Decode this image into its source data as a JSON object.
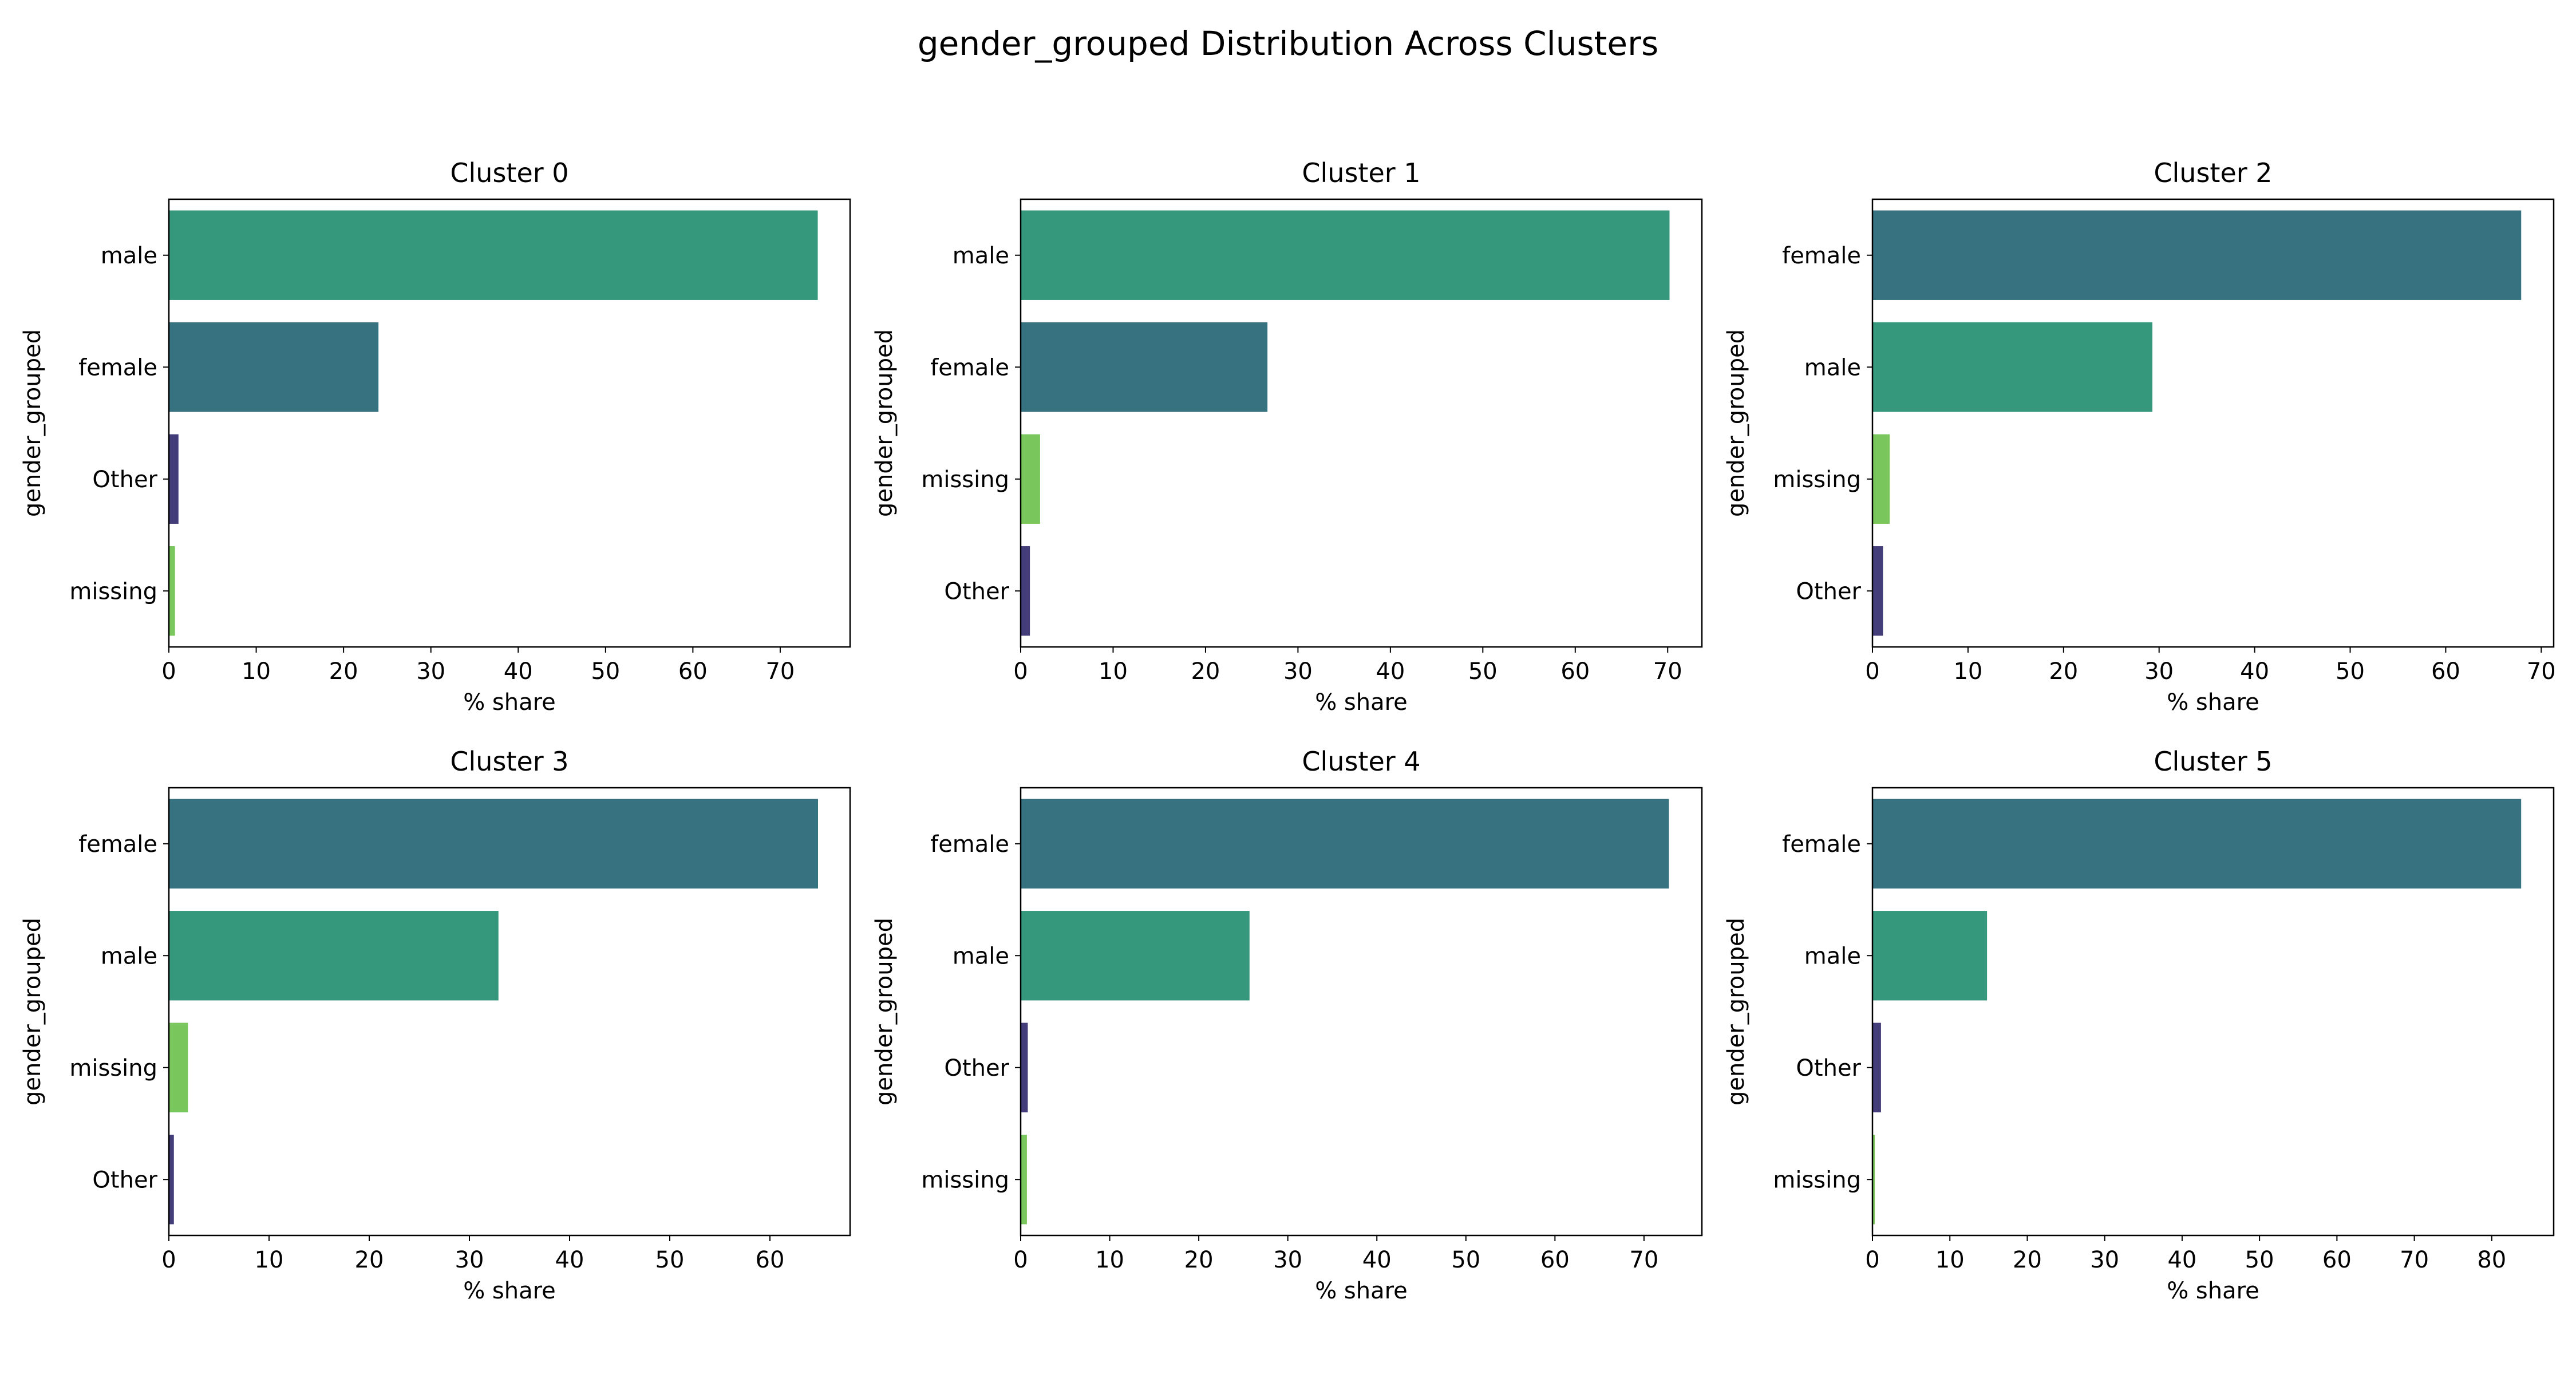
{
  "figure": {
    "title": "gender_grouped Distribution Across Clusters"
  },
  "colors": {
    "male": "#35987C",
    "female": "#377281",
    "Other": "#433D7A",
    "missing": "#79C65C"
  },
  "chart_data": [
    {
      "type": "bar",
      "orientation": "horizontal",
      "title": "Cluster 0",
      "xlabel": "% share",
      "ylabel": "gender_grouped",
      "categories": [
        "male",
        "female",
        "Other",
        "missing"
      ],
      "values": [
        74.3,
        24.0,
        1.1,
        0.7
      ],
      "xlim": [
        0,
        78
      ],
      "xticks": [
        0,
        10,
        20,
        30,
        40,
        50,
        60,
        70
      ],
      "grid": false,
      "legend": "none"
    },
    {
      "type": "bar",
      "orientation": "horizontal",
      "title": "Cluster 1",
      "xlabel": "% share",
      "ylabel": "gender_grouped",
      "categories": [
        "male",
        "female",
        "missing",
        "Other"
      ],
      "values": [
        70.2,
        26.7,
        2.1,
        1.0
      ],
      "xlim": [
        0,
        73.7
      ],
      "xticks": [
        0,
        10,
        20,
        30,
        40,
        50,
        60,
        70
      ],
      "grid": false,
      "legend": "none"
    },
    {
      "type": "bar",
      "orientation": "horizontal",
      "title": "Cluster 2",
      "xlabel": "% share",
      "ylabel": "gender_grouped",
      "categories": [
        "female",
        "male",
        "missing",
        "Other"
      ],
      "values": [
        67.9,
        29.3,
        1.8,
        1.1
      ],
      "xlim": [
        0,
        71.3
      ],
      "xticks": [
        0,
        10,
        20,
        30,
        40,
        50,
        60,
        70
      ],
      "grid": false,
      "legend": "none"
    },
    {
      "type": "bar",
      "orientation": "horizontal",
      "title": "Cluster 3",
      "xlabel": "% share",
      "ylabel": "gender_grouped",
      "categories": [
        "female",
        "male",
        "missing",
        "Other"
      ],
      "values": [
        64.8,
        32.9,
        1.9,
        0.5
      ],
      "xlim": [
        0,
        68
      ],
      "xticks": [
        0,
        10,
        20,
        30,
        40,
        50,
        60
      ],
      "grid": false,
      "legend": "none"
    },
    {
      "type": "bar",
      "orientation": "horizontal",
      "title": "Cluster 4",
      "xlabel": "% share",
      "ylabel": "gender_grouped",
      "categories": [
        "female",
        "male",
        "Other",
        "missing"
      ],
      "values": [
        72.8,
        25.7,
        0.8,
        0.7
      ],
      "xlim": [
        0,
        76.5
      ],
      "xticks": [
        0,
        10,
        20,
        30,
        40,
        50,
        60,
        70
      ],
      "grid": false,
      "legend": "none"
    },
    {
      "type": "bar",
      "orientation": "horizontal",
      "title": "Cluster 5",
      "xlabel": "% share",
      "ylabel": "gender_grouped",
      "categories": [
        "female",
        "male",
        "Other",
        "missing"
      ],
      "values": [
        83.8,
        14.8,
        1.1,
        0.3
      ],
      "xlim": [
        0,
        88
      ],
      "xticks": [
        0,
        10,
        20,
        30,
        40,
        50,
        60,
        70,
        80
      ],
      "grid": false,
      "legend": "none"
    }
  ]
}
